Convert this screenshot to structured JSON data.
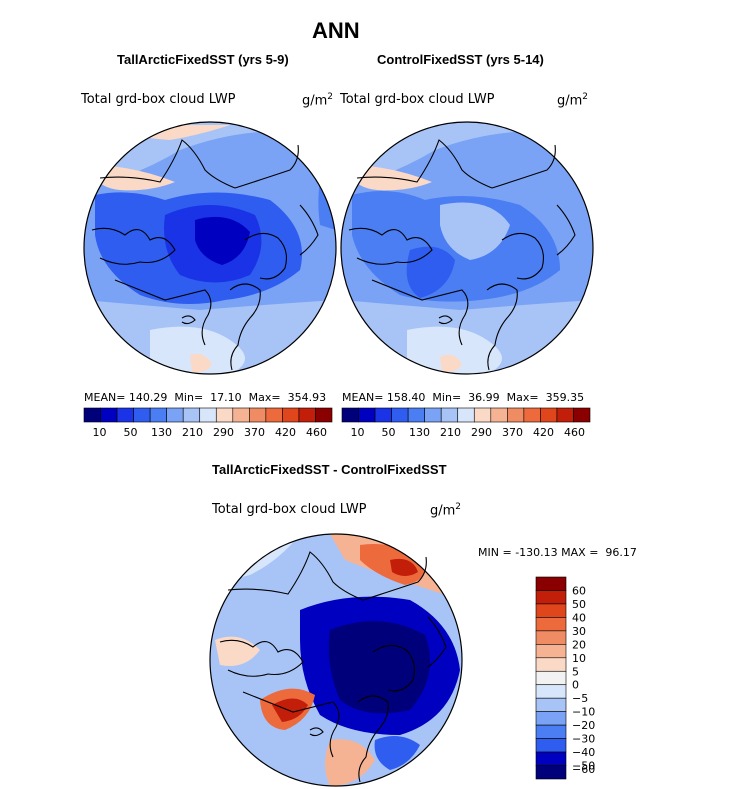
{
  "chart_data": [
    {
      "type": "heatmap",
      "projection": "north polar stereographic",
      "title": "ANN",
      "subtitle": "TallArcticFixedSST (yrs 5-9)",
      "variable": "Total grd-box cloud LWP",
      "units_base": "g/m",
      "units_exp": "2",
      "stats": {
        "mean_label": "MEAN=",
        "mean": "140.29",
        "min_label": "Min=",
        "min": "17.10",
        "max_label": "Max=",
        "max": "354.93"
      },
      "colorbar": {
        "orientation": "horizontal",
        "levels": [
          10,
          30,
          50,
          90,
          130,
          170,
          210,
          250,
          290,
          330,
          370,
          400,
          420,
          440,
          460
        ],
        "tick_labels": [
          "10",
          "50",
          "130",
          "210",
          "290",
          "370",
          "420",
          "460"
        ]
      }
    },
    {
      "type": "heatmap",
      "projection": "north polar stereographic",
      "subtitle": "ControlFixedSST (yrs 5-14)",
      "variable": "Total grd-box cloud LWP",
      "units_base": "g/m",
      "units_exp": "2",
      "stats": {
        "mean_label": "MEAN=",
        "mean": "158.40",
        "min_label": "Min=",
        "min": "36.99",
        "max_label": "Max=",
        "max": "359.35"
      },
      "colorbar": {
        "orientation": "horizontal",
        "levels": [
          10,
          30,
          50,
          90,
          130,
          170,
          210,
          250,
          290,
          330,
          370,
          400,
          420,
          440,
          460
        ],
        "tick_labels": [
          "10",
          "50",
          "130",
          "210",
          "290",
          "370",
          "420",
          "460"
        ]
      }
    },
    {
      "type": "heatmap",
      "projection": "north polar stereographic",
      "subtitle": "TallArcticFixedSST - ControlFixedSST",
      "variable": "Total grd-box cloud LWP",
      "units_base": "g/m",
      "units_exp": "2",
      "stats": {
        "min_label": "MIN =",
        "min": "-130.13",
        "max_label": "MAX =",
        "max": "96.17"
      },
      "colorbar": {
        "orientation": "vertical",
        "levels": [
          60,
          50,
          40,
          30,
          20,
          10,
          5,
          0,
          -5,
          -10,
          -20,
          -30,
          -40,
          -50,
          -60
        ],
        "tick_labels": [
          "60",
          "50",
          "40",
          "30",
          "20",
          "10",
          "5",
          "0",
          "−5",
          "−10",
          "−20",
          "−30",
          "−40",
          "−50",
          "−60"
        ]
      }
    }
  ],
  "palettes": {
    "field": [
      "#00007a",
      "#0000c0",
      "#1a33e6",
      "#2e5df0",
      "#4a7ef2",
      "#7aa3f5",
      "#a8c4f7",
      "#d8e6fb",
      "#fbd9c7",
      "#f5b394",
      "#f08c64",
      "#ec6a3c",
      "#e0461c",
      "#c21e0a",
      "#8a0000"
    ],
    "diff": [
      "#8a0000",
      "#c21e0a",
      "#e0461c",
      "#ec6a3c",
      "#f08c64",
      "#f5b394",
      "#fbd9c7",
      "#f2f2f2",
      "#d8e6fb",
      "#a8c4f7",
      "#7aa3f5",
      "#4a7ef2",
      "#2e5df0",
      "#0000c0",
      "#00007a"
    ]
  }
}
